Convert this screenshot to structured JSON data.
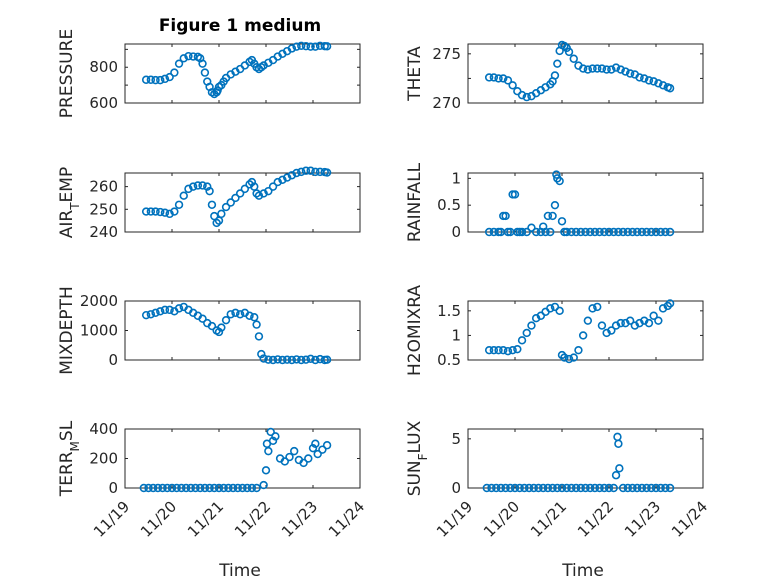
{
  "title": "Figure 1 medium",
  "colors": {
    "marker": "#0072bd",
    "axis": "#262626",
    "grid": "#d7d7d7"
  },
  "chart_data": {
    "type": "scatter",
    "marker": "circle",
    "xlabel": "Time",
    "xlim": [
      19,
      24
    ],
    "xticks": [
      19,
      20,
      21,
      22,
      23,
      24
    ],
    "xticklabels": [
      "11/19",
      "11/20",
      "11/21",
      "11/22",
      "11/23",
      "11/24"
    ],
    "series": [
      {
        "name": "PRESSURE",
        "ylabel": "PRESSURE",
        "ylim": [
          600,
          930
        ],
        "yticks": [
          600,
          700,
          800,
          900
        ],
        "yticklabels": [
          "600",
          "",
          "800",
          ""
        ],
        "x": [
          19.45,
          19.55,
          19.65,
          19.75,
          19.85,
          19.95,
          20.05,
          20.15,
          20.25,
          20.35,
          20.45,
          20.55,
          20.6,
          20.65,
          20.7,
          20.75,
          20.8,
          20.85,
          20.9,
          20.95,
          20.97,
          21.0,
          21.05,
          21.1,
          21.15,
          21.25,
          21.35,
          21.45,
          21.55,
          21.65,
          21.7,
          21.75,
          21.8,
          21.85,
          21.9,
          21.95,
          22.05,
          22.15,
          22.25,
          22.35,
          22.45,
          22.55,
          22.65,
          22.75,
          22.85,
          22.95,
          23.05,
          23.15,
          23.25,
          23.3
        ],
        "y": [
          730,
          730,
          728,
          728,
          735,
          745,
          770,
          820,
          850,
          862,
          860,
          858,
          850,
          820,
          770,
          720,
          690,
          660,
          650,
          660,
          670,
          690,
          700,
          720,
          740,
          760,
          775,
          790,
          810,
          830,
          840,
          820,
          800,
          790,
          800,
          810,
          825,
          840,
          860,
          875,
          890,
          905,
          915,
          920,
          918,
          915,
          915,
          920,
          918,
          917
        ]
      },
      {
        "name": "THETA",
        "ylabel": "THETA",
        "ylim": [
          270,
          276
        ],
        "yticks": [
          270,
          272.5,
          275
        ],
        "yticklabels": [
          "270",
          "",
          "275"
        ],
        "x": [
          19.45,
          19.55,
          19.65,
          19.75,
          19.85,
          19.95,
          20.05,
          20.15,
          20.25,
          20.35,
          20.45,
          20.55,
          20.65,
          20.75,
          20.8,
          20.85,
          20.9,
          20.95,
          21.0,
          21.05,
          21.1,
          21.15,
          21.25,
          21.35,
          21.45,
          21.55,
          21.65,
          21.75,
          21.85,
          21.95,
          22.05,
          22.15,
          22.25,
          22.35,
          22.45,
          22.55,
          22.65,
          22.75,
          22.85,
          22.95,
          23.05,
          23.15,
          23.25,
          23.3
        ],
        "y": [
          272.6,
          272.6,
          272.5,
          272.5,
          272.3,
          271.8,
          271.2,
          270.8,
          270.6,
          270.7,
          271.0,
          271.3,
          271.6,
          271.9,
          272.2,
          272.8,
          274.0,
          275.3,
          275.9,
          275.8,
          275.6,
          275.2,
          274.5,
          273.8,
          273.5,
          273.4,
          273.5,
          273.5,
          273.5,
          273.4,
          273.4,
          273.6,
          273.4,
          273.2,
          273.0,
          272.9,
          272.6,
          272.5,
          272.3,
          272.2,
          272.0,
          271.8,
          271.6,
          271.5
        ]
      },
      {
        "name": "AIR_TEMP",
        "ylabel": "AIR_TEMP",
        "ylim": [
          240,
          266
        ],
        "yticks": [
          240,
          250,
          260
        ],
        "yticklabels": [
          "240",
          "250",
          "260"
        ],
        "x": [
          19.45,
          19.55,
          19.65,
          19.75,
          19.85,
          19.95,
          20.05,
          20.15,
          20.25,
          20.35,
          20.45,
          20.55,
          20.65,
          20.75,
          20.8,
          20.85,
          20.9,
          20.95,
          21.0,
          21.05,
          21.15,
          21.25,
          21.35,
          21.45,
          21.55,
          21.65,
          21.7,
          21.75,
          21.8,
          21.85,
          21.95,
          22.05,
          22.15,
          22.25,
          22.35,
          22.45,
          22.55,
          22.65,
          22.75,
          22.85,
          22.95,
          23.05,
          23.15,
          23.25,
          23.3
        ],
        "y": [
          249,
          249,
          249,
          248.8,
          248.5,
          248,
          249,
          252,
          256,
          259,
          260,
          260.5,
          260.5,
          260,
          258,
          252,
          247,
          244,
          245,
          248,
          251,
          253,
          255,
          257,
          259,
          261,
          262,
          260,
          257,
          256,
          257,
          258,
          260,
          262,
          263,
          264,
          265,
          266,
          266.5,
          267,
          267,
          266.5,
          266.5,
          266.4,
          266.2
        ]
      },
      {
        "name": "RAINFALL",
        "ylabel": "RAINFALL",
        "ylim": [
          0,
          1.1
        ],
        "yticks": [
          0,
          0.5,
          1
        ],
        "yticklabels": [
          "0",
          "0.5",
          "1"
        ],
        "x": [
          19.45,
          19.55,
          19.65,
          19.7,
          19.75,
          19.8,
          19.85,
          19.9,
          19.95,
          20.0,
          20.05,
          20.1,
          20.15,
          20.25,
          20.35,
          20.45,
          20.55,
          20.6,
          20.65,
          20.7,
          20.75,
          20.8,
          20.85,
          20.88,
          20.9,
          20.95,
          21.0,
          21.05,
          21.1,
          21.2,
          21.3,
          21.4,
          21.5,
          21.6,
          21.7,
          21.8,
          21.9,
          22.0,
          22.1,
          22.2,
          22.3,
          22.4,
          22.5,
          22.6,
          22.7,
          22.8,
          22.9,
          23.0,
          23.1,
          23.2,
          23.3
        ],
        "y": [
          0,
          0,
          0,
          0,
          0.3,
          0.3,
          0,
          0,
          0.7,
          0.7,
          0,
          0,
          0,
          0,
          0.08,
          0,
          0,
          0.1,
          0,
          0.3,
          0,
          0.3,
          0.5,
          1.07,
          1.0,
          0.95,
          0.2,
          0,
          0,
          0,
          0,
          0,
          0,
          0,
          0,
          0,
          0,
          0,
          0,
          0,
          0,
          0,
          0,
          0,
          0,
          0,
          0,
          0,
          0,
          0,
          0
        ]
      },
      {
        "name": "MIXDEPTH",
        "ylabel": "MIXDEPTH",
        "ylim": [
          0,
          2000
        ],
        "yticks": [
          0,
          1000,
          2000
        ],
        "yticklabels": [
          "0",
          "1000",
          "2000"
        ],
        "x": [
          19.45,
          19.55,
          19.65,
          19.75,
          19.85,
          19.95,
          20.05,
          20.15,
          20.25,
          20.35,
          20.45,
          20.55,
          20.65,
          20.75,
          20.85,
          20.95,
          21.0,
          21.05,
          21.15,
          21.25,
          21.35,
          21.45,
          21.55,
          21.65,
          21.75,
          21.8,
          21.85,
          21.9,
          21.95,
          22.05,
          22.15,
          22.25,
          22.35,
          22.45,
          22.55,
          22.65,
          22.75,
          22.85,
          22.95,
          23.05,
          23.15,
          23.25,
          23.3
        ],
        "y": [
          1520,
          1550,
          1600,
          1650,
          1700,
          1700,
          1650,
          1750,
          1800,
          1700,
          1600,
          1500,
          1400,
          1250,
          1150,
          1000,
          950,
          1100,
          1350,
          1550,
          1600,
          1550,
          1600,
          1500,
          1450,
          1200,
          800,
          200,
          50,
          10,
          0,
          20,
          0,
          10,
          0,
          20,
          0,
          10,
          40,
          0,
          30,
          0,
          10
        ]
      },
      {
        "name": "H2OMIXRA",
        "ylabel": "H2OMIXRA",
        "ylim": [
          0.5,
          1.7
        ],
        "yticks": [
          0.5,
          1,
          1.5
        ],
        "yticklabels": [
          "0.5",
          "1",
          "1.5"
        ],
        "x": [
          19.45,
          19.55,
          19.65,
          19.75,
          19.85,
          19.95,
          20.05,
          20.15,
          20.25,
          20.35,
          20.45,
          20.55,
          20.65,
          20.75,
          20.85,
          20.95,
          21.0,
          21.05,
          21.15,
          21.25,
          21.35,
          21.45,
          21.55,
          21.65,
          21.75,
          21.85,
          21.95,
          22.05,
          22.15,
          22.25,
          22.35,
          22.45,
          22.55,
          22.65,
          22.75,
          22.85,
          22.95,
          23.05,
          23.15,
          23.25,
          23.3
        ],
        "y": [
          0.7,
          0.7,
          0.7,
          0.7,
          0.68,
          0.7,
          0.72,
          0.9,
          1.05,
          1.2,
          1.35,
          1.4,
          1.48,
          1.55,
          1.58,
          1.5,
          0.6,
          0.55,
          0.52,
          0.55,
          0.7,
          1.0,
          1.3,
          1.55,
          1.58,
          1.2,
          1.05,
          1.1,
          1.2,
          1.25,
          1.25,
          1.3,
          1.2,
          1.25,
          1.3,
          1.25,
          1.4,
          1.3,
          1.55,
          1.6,
          1.65
        ]
      },
      {
        "name": "TERR_MSL",
        "ylabel": "TERR_MSL",
        "ylim": [
          0,
          400
        ],
        "yticks": [
          0,
          200,
          400
        ],
        "yticklabels": [
          "0",
          "200",
          "400"
        ],
        "x": [
          19.4,
          19.5,
          19.6,
          19.7,
          19.8,
          19.9,
          20.0,
          20.1,
          20.2,
          20.3,
          20.4,
          20.5,
          20.6,
          20.7,
          20.8,
          20.9,
          21.0,
          21.1,
          21.2,
          21.3,
          21.4,
          21.5,
          21.6,
          21.7,
          21.8,
          21.95,
          22.0,
          22.02,
          22.05,
          22.1,
          22.15,
          22.2,
          22.3,
          22.4,
          22.5,
          22.6,
          22.7,
          22.8,
          22.9,
          23.0,
          23.05,
          23.1,
          23.2,
          23.3
        ],
        "y": [
          0,
          0,
          0,
          0,
          0,
          0,
          0,
          0,
          0,
          0,
          0,
          0,
          0,
          0,
          0,
          0,
          0,
          0,
          0,
          0,
          0,
          0,
          0,
          0,
          0,
          20,
          120,
          300,
          250,
          380,
          320,
          350,
          200,
          180,
          210,
          250,
          190,
          170,
          200,
          270,
          300,
          230,
          260,
          290
        ]
      },
      {
        "name": "SUN_FLUX",
        "ylabel": "SUN_FLUX",
        "ylim": [
          0,
          6
        ],
        "yticks": [
          0,
          5
        ],
        "yticklabels": [
          "0",
          "5"
        ],
        "x": [
          19.4,
          19.5,
          19.6,
          19.7,
          19.8,
          19.9,
          20.0,
          20.1,
          20.2,
          20.3,
          20.4,
          20.5,
          20.6,
          20.7,
          20.8,
          20.9,
          21.0,
          21.1,
          21.2,
          21.3,
          21.4,
          21.5,
          21.6,
          21.7,
          21.8,
          21.9,
          22.0,
          22.1,
          22.15,
          22.18,
          22.2,
          22.22,
          22.3,
          22.4,
          22.5,
          22.6,
          22.7,
          22.8,
          22.9,
          23.0,
          23.1,
          23.2,
          23.3
        ],
        "y": [
          0,
          0,
          0,
          0,
          0,
          0,
          0,
          0,
          0,
          0,
          0,
          0,
          0,
          0,
          0,
          0,
          0,
          0,
          0,
          0,
          0,
          0,
          0,
          0,
          0,
          0,
          0,
          0,
          1.3,
          5.2,
          4.5,
          2.0,
          0,
          0,
          0,
          0,
          0,
          0,
          0,
          0,
          0,
          0,
          0
        ]
      }
    ]
  }
}
